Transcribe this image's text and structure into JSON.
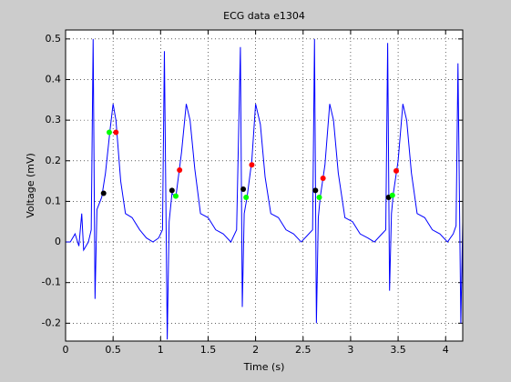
{
  "chart_data": {
    "type": "line",
    "title": "ECG data e1304",
    "x_label": "Time (s)",
    "y_label": "Voltage (mV)",
    "xlim": [
      0,
      4.18
    ],
    "ylim": [
      -0.244,
      0.522
    ],
    "xticks": [
      0,
      0.5,
      1,
      1.5,
      2,
      2.5,
      3,
      3.5,
      4
    ],
    "yticks": [
      -0.2,
      -0.1,
      0,
      0.1,
      0.2,
      0.3,
      0.4,
      0.5
    ],
    "grid": true,
    "series": [
      {
        "color": "#0000ff",
        "mode": "line",
        "x": [
          0.0,
          0.05,
          0.1,
          0.14,
          0.17,
          0.19,
          0.24,
          0.27,
          0.29,
          0.31,
          0.33,
          0.38,
          0.42,
          0.47,
          0.5,
          0.53,
          0.58,
          0.63,
          0.7,
          0.78,
          0.85,
          0.92,
          0.98,
          1.02,
          1.04,
          1.07,
          1.09,
          1.12,
          1.16,
          1.22,
          1.27,
          1.31,
          1.36,
          1.42,
          1.5,
          1.58,
          1.66,
          1.74,
          1.8,
          1.84,
          1.86,
          1.88,
          1.91,
          1.96,
          2.0,
          2.05,
          2.1,
          2.16,
          2.24,
          2.32,
          2.4,
          2.48,
          2.56,
          2.6,
          2.62,
          2.64,
          2.66,
          2.68,
          2.73,
          2.78,
          2.82,
          2.87,
          2.94,
          3.02,
          3.1,
          3.18,
          3.25,
          3.33,
          3.37,
          3.39,
          3.41,
          3.43,
          3.45,
          3.5,
          3.55,
          3.59,
          3.64,
          3.7,
          3.78,
          3.86,
          3.94,
          4.02,
          4.08,
          4.11,
          4.13,
          4.16,
          4.18
        ],
        "values": [
          0.0,
          0.0,
          0.02,
          -0.01,
          0.07,
          -0.02,
          0.0,
          0.03,
          0.5,
          -0.14,
          0.08,
          0.11,
          0.17,
          0.28,
          0.34,
          0.3,
          0.15,
          0.07,
          0.06,
          0.03,
          0.01,
          0.0,
          0.01,
          0.03,
          0.47,
          -0.24,
          0.05,
          0.12,
          0.11,
          0.22,
          0.34,
          0.3,
          0.18,
          0.07,
          0.06,
          0.03,
          0.02,
          0.0,
          0.03,
          0.48,
          -0.16,
          0.07,
          0.11,
          0.2,
          0.34,
          0.29,
          0.16,
          0.07,
          0.06,
          0.03,
          0.02,
          0.0,
          0.02,
          0.03,
          0.5,
          -0.2,
          0.06,
          0.11,
          0.19,
          0.34,
          0.3,
          0.17,
          0.06,
          0.05,
          0.02,
          0.01,
          0.0,
          0.02,
          0.03,
          0.49,
          -0.12,
          0.07,
          0.12,
          0.2,
          0.34,
          0.3,
          0.17,
          0.07,
          0.06,
          0.03,
          0.02,
          0.0,
          0.02,
          0.04,
          0.44,
          -0.2,
          0.05
        ]
      },
      {
        "color": "#000000",
        "mode": "markers",
        "x": [
          0.4,
          1.12,
          1.87,
          2.63,
          3.4
        ],
        "values": [
          0.12,
          0.127,
          0.13,
          0.127,
          0.11
        ]
      },
      {
        "color": "#00ff00",
        "mode": "markers",
        "x": [
          0.46,
          1.16,
          1.9,
          2.67,
          3.44
        ],
        "values": [
          0.27,
          0.113,
          0.11,
          0.11,
          0.115
        ]
      },
      {
        "color": "#ff0000",
        "mode": "markers",
        "x": [
          0.53,
          1.2,
          1.96,
          2.71,
          3.48
        ],
        "values": [
          0.27,
          0.177,
          0.19,
          0.157,
          0.175
        ]
      }
    ]
  }
}
